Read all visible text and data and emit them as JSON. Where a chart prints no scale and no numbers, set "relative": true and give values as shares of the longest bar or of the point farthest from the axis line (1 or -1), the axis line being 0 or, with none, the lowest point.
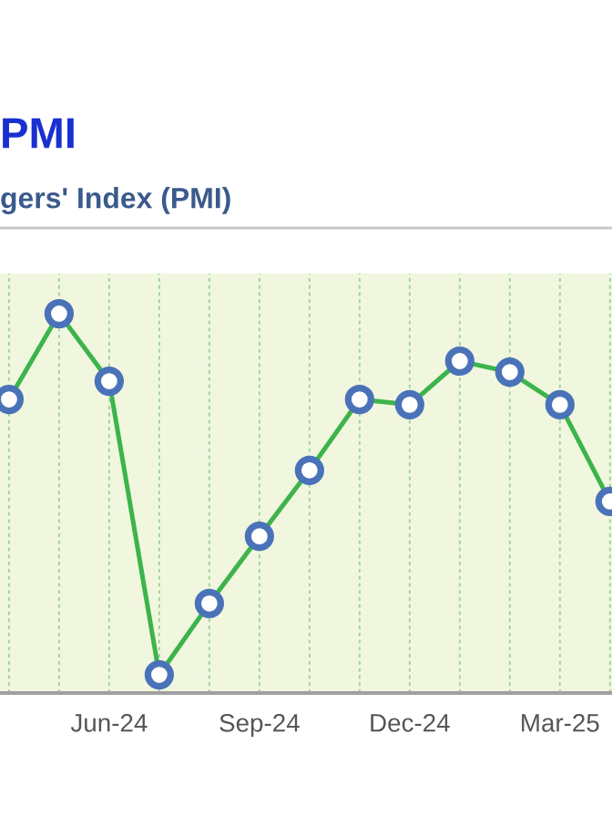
{
  "chart_data": {
    "type": "line",
    "title": "PMI",
    "subtitle": "gers' Index (PMI)",
    "categories": [
      null,
      null,
      "Jun-24",
      null,
      null,
      "Sep-24",
      null,
      null,
      "Dec-24",
      null,
      null,
      "Mar-25",
      null
    ],
    "relative": true,
    "series": [
      {
        "color": "#3cb44b",
        "values": [
          0.774,
          1,
          0.822,
          0.048,
          0.236,
          0.413,
          0.587,
          0.774,
          0.76,
          0.875,
          0.846,
          0.76,
          0.505
        ]
      }
    ],
    "marker": "circle",
    "line_style": "solid",
    "grid": "x",
    "legend": false
  }
}
